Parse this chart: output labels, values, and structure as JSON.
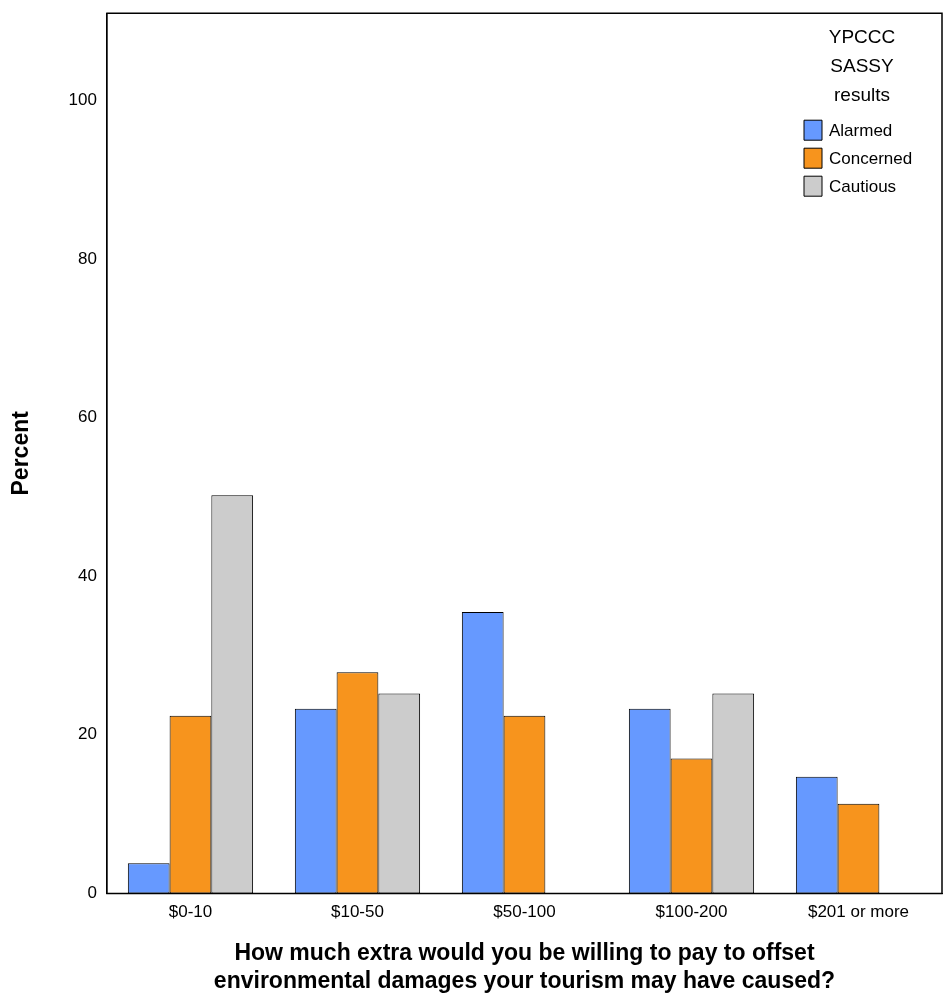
{
  "chart_data": {
    "type": "bar",
    "xlabel": "How much extra would you be willing to pay to offset environmental damages your tourism may have caused?",
    "ylabel": "Percent",
    "legend_title": "YPCCC SASSY results",
    "legend": "top right",
    "grid": false,
    "categories": [
      "$0-10",
      "$10-50",
      "$50-100",
      "$100-200",
      "$201 or more"
    ],
    "ylim": [
      0,
      111
    ],
    "yticks": [
      0,
      20,
      40,
      60,
      80,
      100
    ],
    "series": [
      {
        "name": "Alarmed",
        "color": "#6699ff",
        "values": [
          3.8,
          23.3,
          35.5,
          23.3,
          14.7
        ]
      },
      {
        "name": "Concerned",
        "color": "#f7941d",
        "values": [
          22.4,
          27.9,
          22.4,
          17.0,
          11.3
        ]
      },
      {
        "name": "Cautious",
        "color": "#cccccc",
        "values": [
          50.2,
          25.2,
          0,
          25.2,
          0
        ]
      }
    ]
  }
}
